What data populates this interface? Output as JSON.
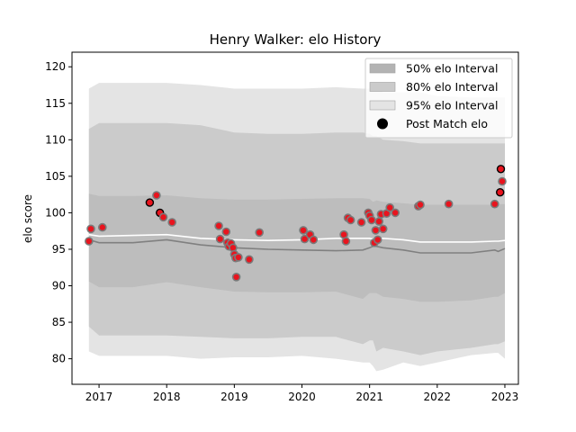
{
  "chart_data": {
    "type": "area",
    "title": "Henry Walker: elo History",
    "xlabel": "",
    "ylabel": "elo score",
    "xlim": [
      2016.6,
      2023.2
    ],
    "ylim": [
      76.5,
      122.0
    ],
    "xticks": [
      2017,
      2018,
      2019,
      2020,
      2021,
      2022,
      2023
    ],
    "yticks": [
      80,
      85,
      90,
      95,
      100,
      105,
      110,
      115,
      120
    ],
    "grid": false,
    "legend_position": "top-right",
    "colors": {
      "band50": "#b3b3b3",
      "band80": "#cbcbcb",
      "band95": "#e4e4e4",
      "median_line": "#ffffff",
      "center_line": "#808080",
      "point_fill": "#e8141e",
      "highlight_fill": "#e8141e",
      "point_edge": "#7a7a7a",
      "highlight_edge": "#000000"
    },
    "legend": [
      {
        "label": "50% elo Interval",
        "kind": "band50"
      },
      {
        "label": "80% elo Interval",
        "kind": "band80"
      },
      {
        "label": "95% elo Interval",
        "kind": "band95"
      },
      {
        "label": "Post Match elo",
        "kind": "marker"
      }
    ],
    "bands": {
      "x": [
        2016.85,
        2017.0,
        2017.5,
        2018.0,
        2018.5,
        2019.0,
        2019.5,
        2020.0,
        2020.5,
        2020.9,
        2021.0,
        2021.05,
        2021.1,
        2021.2,
        2021.5,
        2021.75,
        2022.0,
        2022.5,
        2022.85,
        2022.9,
        2023.0
      ],
      "upper95": [
        117.0,
        117.8,
        117.8,
        117.8,
        117.5,
        117.0,
        117.0,
        117.0,
        117.2,
        117.0,
        117.0,
        117.0,
        117.0,
        116.5,
        116.5,
        116.5,
        116.0,
        115.8,
        115.8,
        115.8,
        115.8
      ],
      "upper80": [
        111.5,
        112.3,
        112.3,
        112.3,
        112.0,
        111.0,
        110.8,
        110.8,
        111.0,
        111.0,
        110.8,
        110.5,
        110.5,
        110.0,
        109.8,
        109.5,
        109.5,
        109.5,
        109.5,
        109.5,
        109.5
      ],
      "upper50": [
        102.6,
        102.3,
        102.3,
        102.4,
        102.0,
        101.8,
        101.8,
        101.9,
        102.0,
        102.0,
        101.9,
        101.5,
        101.7,
        101.5,
        101.3,
        101.1,
        101.1,
        101.1,
        101.1,
        101.2,
        101.2
      ],
      "median": [
        97.0,
        96.8,
        96.9,
        97.0,
        96.5,
        96.3,
        96.2,
        96.3,
        96.5,
        96.5,
        96.5,
        96.4,
        96.4,
        96.5,
        96.3,
        96.0,
        96.0,
        96.0,
        96.1,
        96.1,
        96.2
      ],
      "center": [
        96.3,
        95.9,
        95.9,
        96.3,
        95.6,
        95.2,
        95.0,
        94.9,
        94.8,
        94.9,
        95.2,
        95.4,
        95.4,
        95.2,
        94.9,
        94.5,
        94.5,
        94.5,
        94.9,
        94.7,
        95.1
      ],
      "lower50": [
        90.6,
        89.8,
        89.8,
        90.5,
        89.8,
        89.2,
        89.1,
        89.1,
        89.2,
        88.2,
        89.0,
        89.0,
        89.0,
        88.5,
        88.2,
        87.8,
        87.8,
        88.0,
        88.5,
        88.5,
        89.0
      ],
      "lower80": [
        84.4,
        83.2,
        83.2,
        83.2,
        83.0,
        82.8,
        82.8,
        83.0,
        83.0,
        82.0,
        82.5,
        82.5,
        81.0,
        81.5,
        81.0,
        80.5,
        81.0,
        81.5,
        82.0,
        82.0,
        82.4
      ],
      "lower95": [
        81.0,
        80.4,
        80.4,
        80.4,
        80.0,
        80.2,
        80.2,
        80.4,
        80.0,
        79.5,
        79.5,
        79.0,
        78.3,
        78.5,
        79.5,
        79.0,
        79.5,
        80.5,
        80.8,
        80.8,
        80.0
      ]
    },
    "series": [
      {
        "name": "Post Match elo",
        "points": [
          {
            "x": 2016.85,
            "y": 96.1
          },
          {
            "x": 2016.88,
            "y": 97.8
          },
          {
            "x": 2017.05,
            "y": 98.0
          },
          {
            "x": 2017.75,
            "y": 101.4,
            "highlight": true
          },
          {
            "x": 2017.85,
            "y": 102.4
          },
          {
            "x": 2017.9,
            "y": 100.0,
            "highlight": true
          },
          {
            "x": 2017.95,
            "y": 99.4
          },
          {
            "x": 2018.08,
            "y": 98.7
          },
          {
            "x": 2018.77,
            "y": 98.2
          },
          {
            "x": 2018.79,
            "y": 96.4
          },
          {
            "x": 2018.88,
            "y": 97.4
          },
          {
            "x": 2018.9,
            "y": 95.9
          },
          {
            "x": 2018.92,
            "y": 95.4
          },
          {
            "x": 2018.95,
            "y": 95.8
          },
          {
            "x": 2018.98,
            "y": 95.2
          },
          {
            "x": 2019.0,
            "y": 94.3
          },
          {
            "x": 2019.02,
            "y": 93.8
          },
          {
            "x": 2019.03,
            "y": 91.2
          },
          {
            "x": 2019.06,
            "y": 93.9
          },
          {
            "x": 2019.22,
            "y": 93.6
          },
          {
            "x": 2019.37,
            "y": 97.3
          },
          {
            "x": 2020.02,
            "y": 97.6
          },
          {
            "x": 2020.04,
            "y": 96.4
          },
          {
            "x": 2020.12,
            "y": 97.0
          },
          {
            "x": 2020.17,
            "y": 96.3
          },
          {
            "x": 2020.62,
            "y": 97.0
          },
          {
            "x": 2020.65,
            "y": 96.1
          },
          {
            "x": 2020.68,
            "y": 99.3
          },
          {
            "x": 2020.72,
            "y": 99.0
          },
          {
            "x": 2020.88,
            "y": 98.7
          },
          {
            "x": 2020.98,
            "y": 100.0
          },
          {
            "x": 2021.0,
            "y": 99.6
          },
          {
            "x": 2021.03,
            "y": 99.0
          },
          {
            "x": 2021.07,
            "y": 95.9
          },
          {
            "x": 2021.09,
            "y": 97.6
          },
          {
            "x": 2021.12,
            "y": 96.3
          },
          {
            "x": 2021.14,
            "y": 98.8
          },
          {
            "x": 2021.17,
            "y": 99.8
          },
          {
            "x": 2021.2,
            "y": 97.8
          },
          {
            "x": 2021.25,
            "y": 99.9
          },
          {
            "x": 2021.3,
            "y": 100.7
          },
          {
            "x": 2021.38,
            "y": 100.0
          },
          {
            "x": 2021.72,
            "y": 100.9
          },
          {
            "x": 2021.75,
            "y": 101.1
          },
          {
            "x": 2022.17,
            "y": 101.2
          },
          {
            "x": 2022.85,
            "y": 101.2
          },
          {
            "x": 2022.93,
            "y": 102.8,
            "highlight": true
          },
          {
            "x": 2022.94,
            "y": 106.0,
            "highlight": true
          },
          {
            "x": 2022.96,
            "y": 104.3
          }
        ]
      }
    ]
  }
}
